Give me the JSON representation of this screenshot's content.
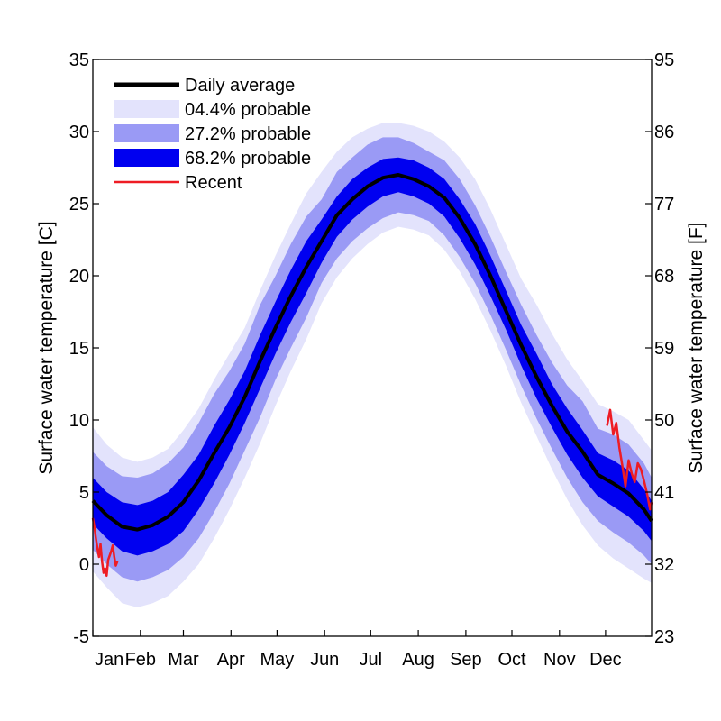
{
  "chart_data": {
    "type": "area",
    "title": "",
    "ylabel_left": "Surface water temperature [C]",
    "ylabel_right": "Surface water temperature [F]",
    "ylim": [
      -5,
      35
    ],
    "yticks_left": [
      -5,
      0,
      5,
      10,
      15,
      20,
      25,
      30,
      35
    ],
    "yticks_right": [
      23,
      32,
      41,
      50,
      59,
      68,
      77,
      86,
      95
    ],
    "xlim_day": [
      1,
      365
    ],
    "x_unit": "day of year",
    "xticks": [
      {
        "label": "Jan",
        "day": 1
      },
      {
        "label": "Feb",
        "day": 32
      },
      {
        "label": "Mar",
        "day": 60
      },
      {
        "label": "Apr",
        "day": 91
      },
      {
        "label": "May",
        "day": 121
      },
      {
        "label": "Jun",
        "day": 152
      },
      {
        "label": "Jul",
        "day": 182
      },
      {
        "label": "Aug",
        "day": 213
      },
      {
        "label": "Sep",
        "day": 244
      },
      {
        "label": "Oct",
        "day": 274
      },
      {
        "label": "Nov",
        "day": 305
      },
      {
        "label": "Dec",
        "day": 335
      }
    ],
    "grid": false,
    "legend_position": "top-left",
    "colors": {
      "band_04_4": "#e3e3fc",
      "band_27_2": "#9a9af5",
      "band_68_2": "#0000f0",
      "daily_average": "#000000",
      "recent": "#ee1c24"
    },
    "legend": [
      {
        "key": "daily_average",
        "label": "Daily average",
        "style": "thick-line"
      },
      {
        "key": "band_04_4",
        "label": "04.4% probable",
        "style": "patch"
      },
      {
        "key": "band_27_2",
        "label": "27.2% probable",
        "style": "patch"
      },
      {
        "key": "band_68_2",
        "label": "68.2% probable",
        "style": "patch"
      },
      {
        "key": "recent",
        "label": "Recent",
        "style": "thin-line"
      }
    ],
    "x": [
      1,
      10,
      20,
      30,
      40,
      50,
      60,
      70,
      80,
      90,
      100,
      110,
      120,
      130,
      140,
      150,
      160,
      170,
      180,
      190,
      200,
      210,
      220,
      230,
      240,
      250,
      260,
      270,
      280,
      290,
      300,
      310,
      320,
      330,
      340,
      350,
      360,
      365
    ],
    "series": [
      {
        "name": "Daily average",
        "key": "daily_average",
        "values": [
          4.4,
          3.4,
          2.6,
          2.4,
          2.7,
          3.3,
          4.3,
          5.8,
          7.7,
          9.5,
          11.6,
          14.1,
          16.4,
          18.6,
          20.6,
          22.4,
          24.2,
          25.3,
          26.2,
          26.8,
          27.0,
          26.7,
          26.2,
          25.4,
          24.0,
          22.2,
          20.0,
          17.6,
          15.2,
          13.0,
          11.0,
          9.2,
          7.8,
          6.2,
          5.6,
          4.9,
          3.8,
          3.0
        ]
      },
      {
        "name": "68.2% probable",
        "key": "band_68_2",
        "lower": [
          2.8,
          1.8,
          0.9,
          0.6,
          0.9,
          1.4,
          2.3,
          3.8,
          5.6,
          7.6,
          9.8,
          12.2,
          14.6,
          16.8,
          18.8,
          20.9,
          22.7,
          23.9,
          24.8,
          25.5,
          25.8,
          25.5,
          25.0,
          24.1,
          22.6,
          20.8,
          18.6,
          16.3,
          13.8,
          11.5,
          9.5,
          7.6,
          6.0,
          4.7,
          4.0,
          3.3,
          2.3,
          1.6
        ],
        "upper": [
          6.0,
          5.0,
          4.3,
          4.1,
          4.4,
          5.0,
          6.2,
          7.6,
          9.6,
          11.4,
          13.4,
          15.9,
          18.2,
          20.4,
          22.4,
          23.9,
          25.5,
          26.7,
          27.5,
          28.1,
          28.2,
          28.0,
          27.5,
          26.7,
          25.3,
          23.6,
          21.4,
          19.0,
          16.6,
          14.6,
          12.5,
          10.8,
          9.3,
          7.7,
          7.2,
          6.5,
          5.2,
          4.4
        ]
      },
      {
        "name": "27.2% probable",
        "key": "band_27_2",
        "lower": [
          1.0,
          0.0,
          -0.9,
          -1.2,
          -0.9,
          -0.4,
          0.5,
          1.8,
          3.6,
          5.6,
          7.9,
          10.2,
          12.8,
          15.0,
          17.1,
          19.5,
          21.2,
          22.4,
          23.3,
          24.0,
          24.4,
          24.2,
          23.8,
          22.8,
          21.3,
          19.5,
          17.3,
          14.9,
          12.4,
          10.1,
          8.0,
          6.0,
          4.3,
          3.0,
          2.2,
          1.5,
          0.6,
          0.0
        ]
      },
      {
        "name": "04.4% probable",
        "key": "band_04_4",
        "lower": [
          -0.5,
          -1.6,
          -2.7,
          -3.0,
          -2.7,
          -2.2,
          -1.2,
          0.0,
          1.8,
          3.8,
          6.0,
          8.4,
          11.0,
          13.4,
          15.6,
          18.1,
          19.9,
          21.2,
          22.2,
          23.0,
          23.4,
          23.2,
          22.8,
          21.8,
          20.3,
          18.4,
          16.2,
          13.8,
          11.2,
          8.9,
          6.6,
          4.5,
          2.7,
          1.3,
          0.4,
          -0.3,
          -1.0,
          -1.3
        ],
        "upper": [
          9.5,
          8.3,
          7.4,
          7.1,
          7.4,
          8.0,
          9.3,
          10.8,
          12.8,
          14.6,
          16.4,
          19.0,
          21.4,
          23.6,
          25.7,
          27.2,
          28.6,
          29.6,
          30.2,
          30.6,
          30.6,
          30.4,
          30.0,
          29.3,
          28.2,
          26.7,
          24.6,
          22.2,
          19.8,
          18.0,
          16.0,
          14.2,
          12.7,
          11.1,
          10.6,
          10.0,
          8.6,
          7.9
        ]
      }
    ],
    "recent_segments": [
      {
        "x": [
          1,
          2,
          3,
          4,
          5,
          6,
          7,
          8,
          9,
          10,
          11,
          12,
          13,
          14,
          15,
          16,
          17
        ],
        "y": [
          3.2,
          2.6,
          1.8,
          1.1,
          0.5,
          1.4,
          0.2,
          -0.6,
          -0.3,
          -0.8,
          0.3,
          0.6,
          0.9,
          1.3,
          0.5,
          -0.1,
          0.2
        ]
      },
      {
        "x": [
          336,
          338,
          340,
          342,
          344,
          346,
          348,
          350,
          352,
          354,
          356,
          358,
          360,
          362,
          364,
          365
        ],
        "y": [
          9.6,
          10.7,
          9.0,
          9.8,
          8.1,
          6.8,
          5.4,
          7.2,
          6.3,
          5.7,
          7.0,
          6.6,
          5.8,
          4.9,
          3.8,
          4.3
        ]
      }
    ]
  }
}
